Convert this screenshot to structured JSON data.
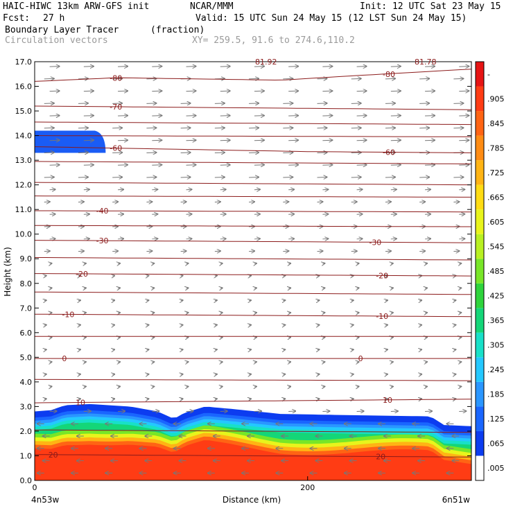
{
  "header": {
    "model": "HAIC-HIWC 13km ARW-GFS init",
    "center": "NCAR/MMM",
    "init": "Init: 12 UTC Sat 23 May 15",
    "fcst_label": "Fcst:",
    "fcst_value": "27 h",
    "valid": "Valid: 15 UTC Sun 24 May 15 (12 LST Sun 24 May 15)",
    "field": "Boundary Layer Tracer",
    "field_units": "(fraction)",
    "vectors": "Circulation vectors",
    "xy": "XY= 259.5, 91.6 to 274.6,110.2",
    "top_label_left": "81.92",
    "top_label_right": "81.78"
  },
  "colors": {
    "contour": "#8b1a1a",
    "vector": "#777777",
    "axis": "#000000"
  },
  "chart_data": {
    "type": "heatmap",
    "title": "Boundary Layer Tracer",
    "xlabel": "Distance (km)",
    "ylabel": "Height (km)",
    "xlim": [
      0,
      320
    ],
    "ylim": [
      0,
      17
    ],
    "x_ticks": [
      {
        "value": 0,
        "label": "0"
      },
      {
        "value": 200,
        "label": "200"
      }
    ],
    "x_endpoints": {
      "left": "4n53w",
      "right": "6n51w"
    },
    "y_ticks": [
      "0.0",
      "1.0",
      "2.0",
      "3.0",
      "4.0",
      "5.0",
      "6.0",
      "7.0",
      "8.0",
      "9.0",
      "10.0",
      "11.0",
      "12.0",
      "13.0",
      "14.0",
      "15.0",
      "16.0",
      "17.0"
    ],
    "colorbar": {
      "labels": [
        ".005",
        ".065",
        ".125",
        ".185",
        ".245",
        ".305",
        ".365",
        ".425",
        ".485",
        ".545",
        ".605",
        ".665",
        ".725",
        ".785",
        ".845",
        ".905",
        "-"
      ],
      "colors": [
        "#ffffff",
        "#0c3cf0",
        "#1a66ff",
        "#2a96ff",
        "#24c8ff",
        "#18e0c8",
        "#14d678",
        "#2ed43c",
        "#78e628",
        "#b8f022",
        "#e8f41c",
        "#ffdc14",
        "#ffb414",
        "#ff8c14",
        "#ff6414",
        "#ff3c14",
        "#e61414"
      ]
    },
    "contours": [
      {
        "label": "-80",
        "levels_km": [
          {
            "x": 0,
            "z": 16.2
          },
          {
            "x": 60,
            "z": 16.35
          },
          {
            "x": 180,
            "z": 16.25
          },
          {
            "x": 240,
            "z": 16.45
          },
          {
            "x": 320,
            "z": 16.7
          }
        ],
        "label_x": [
          55,
          255
        ]
      },
      {
        "label": "-70",
        "levels_km": [
          {
            "x": 0,
            "z": 15.2
          },
          {
            "x": 320,
            "z": 15.05
          }
        ],
        "label_x": [
          55
        ]
      },
      {
        "label": "",
        "levels_km": [
          {
            "x": 0,
            "z": 14.55
          },
          {
            "x": 320,
            "z": 14.45
          }
        ],
        "label_x": []
      },
      {
        "label": "",
        "levels_km": [
          {
            "x": 0,
            "z": 14.0
          },
          {
            "x": 320,
            "z": 13.95
          }
        ],
        "label_x": []
      },
      {
        "label": "-60",
        "levels_km": [
          {
            "x": 0,
            "z": 13.55
          },
          {
            "x": 200,
            "z": 13.35
          },
          {
            "x": 320,
            "z": 13.3
          }
        ],
        "label_x": [
          55,
          255
        ]
      },
      {
        "label": "",
        "levels_km": [
          {
            "x": 0,
            "z": 12.95
          },
          {
            "x": 320,
            "z": 12.85
          }
        ],
        "label_x": []
      },
      {
        "label": "",
        "levels_km": [
          {
            "x": 0,
            "z": 12.1
          },
          {
            "x": 320,
            "z": 12.0
          }
        ],
        "label_x": []
      },
      {
        "label": "",
        "levels_km": [
          {
            "x": 0,
            "z": 11.55
          },
          {
            "x": 320,
            "z": 11.5
          }
        ],
        "label_x": []
      },
      {
        "label": "-40",
        "levels_km": [
          {
            "x": 0,
            "z": 10.95
          },
          {
            "x": 320,
            "z": 10.9
          }
        ],
        "label_x": [
          45
        ]
      },
      {
        "label": "",
        "levels_km": [
          {
            "x": 0,
            "z": 10.35
          },
          {
            "x": 320,
            "z": 10.3
          }
        ],
        "label_x": []
      },
      {
        "label": "-30",
        "levels_km": [
          {
            "x": 0,
            "z": 9.75
          },
          {
            "x": 320,
            "z": 9.65
          }
        ],
        "label_x": [
          45,
          245
        ]
      },
      {
        "label": "",
        "levels_km": [
          {
            "x": 0,
            "z": 9.05
          },
          {
            "x": 320,
            "z": 8.95
          }
        ],
        "label_x": []
      },
      {
        "label": "-20",
        "levels_km": [
          {
            "x": 0,
            "z": 8.4
          },
          {
            "x": 320,
            "z": 8.3
          }
        ],
        "label_x": [
          30,
          250
        ]
      },
      {
        "label": "",
        "levels_km": [
          {
            "x": 0,
            "z": 7.65
          },
          {
            "x": 320,
            "z": 7.55
          }
        ],
        "label_x": []
      },
      {
        "label": "-10",
        "levels_km": [
          {
            "x": 0,
            "z": 6.75
          },
          {
            "x": 320,
            "z": 6.65
          }
        ],
        "label_x": [
          20,
          250
        ]
      },
      {
        "label": "",
        "levels_km": [
          {
            "x": 0,
            "z": 5.85
          },
          {
            "x": 320,
            "z": 5.85
          }
        ],
        "label_x": []
      },
      {
        "label": "0",
        "levels_km": [
          {
            "x": 0,
            "z": 4.95
          },
          {
            "x": 320,
            "z": 4.95
          }
        ],
        "label_x": [
          20,
          237
        ]
      },
      {
        "label": "",
        "levels_km": [
          {
            "x": 0,
            "z": 4.1
          },
          {
            "x": 320,
            "z": 4.05
          }
        ],
        "label_x": []
      },
      {
        "label": "10",
        "levels_km": [
          {
            "x": 0,
            "z": 3.15
          },
          {
            "x": 320,
            "z": 3.3
          }
        ],
        "label_x": [
          30,
          255
        ]
      },
      {
        "label": "",
        "levels_km": [
          {
            "x": 0,
            "z": 2.05
          },
          {
            "x": 320,
            "z": 1.95
          }
        ],
        "label_x": []
      },
      {
        "label": "20",
        "levels_km": [
          {
            "x": 0,
            "z": 1.05
          },
          {
            "x": 320,
            "z": 0.95
          }
        ],
        "label_x": [
          10,
          250
        ]
      }
    ],
    "tracer_top_km": [
      {
        "x": 0,
        "z": 2.8
      },
      {
        "x": 12,
        "z": 2.85
      },
      {
        "x": 22,
        "z": 3.05
      },
      {
        "x": 40,
        "z": 3.1
      },
      {
        "x": 70,
        "z": 3.0
      },
      {
        "x": 90,
        "z": 2.8
      },
      {
        "x": 102,
        "z": 2.5
      },
      {
        "x": 110,
        "z": 2.75
      },
      {
        "x": 125,
        "z": 3.0
      },
      {
        "x": 145,
        "z": 2.9
      },
      {
        "x": 180,
        "z": 2.7
      },
      {
        "x": 230,
        "z": 2.65
      },
      {
        "x": 290,
        "z": 2.6
      },
      {
        "x": 300,
        "z": 2.25
      },
      {
        "x": 320,
        "z": 2.2
      }
    ],
    "upper_patch_km": {
      "x_max": 52,
      "z_bottom": 13.3,
      "z_top": 14.2
    }
  }
}
